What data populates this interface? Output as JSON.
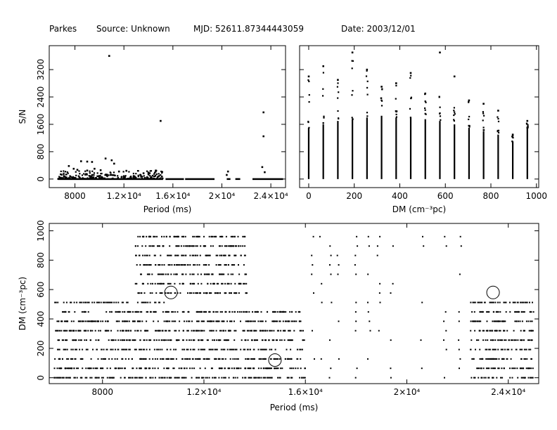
{
  "header": {
    "telescope": "Parkes",
    "source": "Source: Unknown",
    "mjd": "MJD: 52611.87344443059",
    "date": "Date: 2003/12/01"
  },
  "chart_data": [
    {
      "id": "snr_vs_period",
      "type": "scatter",
      "xlabel": "Period (ms)",
      "ylabel": "S/N",
      "xlim": [
        5900,
        25200
      ],
      "ylim": [
        -250,
        3900
      ],
      "xticks": [
        {
          "v": 8000,
          "label": "8000"
        },
        {
          "v": 12000,
          "label": "1.2×10⁴"
        },
        {
          "v": 16000,
          "label": "1.6×10⁴"
        },
        {
          "v": 20000,
          "label": "2×10⁴"
        },
        {
          "v": 24000,
          "label": "2.4×10⁴"
        }
      ],
      "yticks": [
        {
          "v": 0,
          "label": "0"
        },
        {
          "v": 800,
          "label": "800"
        },
        {
          "v": 1600,
          "label": "1600"
        },
        {
          "v": 2400,
          "label": "2400"
        },
        {
          "v": 3200,
          "label": "3200"
        }
      ],
      "baseline_segments": [
        [
          6600,
          15200
        ],
        [
          15400,
          16900
        ],
        [
          17000,
          19400
        ],
        [
          20400,
          20700
        ],
        [
          21100,
          21500
        ],
        [
          22500,
          25000
        ]
      ],
      "points": [
        [
          10800,
          3600
        ],
        [
          15000,
          1700
        ],
        [
          23400,
          1950
        ],
        [
          23400,
          1250
        ],
        [
          10500,
          600
        ],
        [
          11000,
          550
        ],
        [
          8500,
          520
        ],
        [
          9000,
          510
        ],
        [
          9400,
          500
        ],
        [
          11200,
          450
        ],
        [
          7500,
          380
        ],
        [
          7900,
          300
        ],
        [
          8200,
          270
        ],
        [
          9000,
          250
        ],
        [
          9600,
          300
        ],
        [
          10100,
          260
        ],
        [
          11600,
          220
        ],
        [
          12200,
          240
        ],
        [
          13600,
          170
        ],
        [
          14000,
          190
        ],
        [
          14100,
          170
        ],
        [
          14600,
          250
        ],
        [
          20500,
          220
        ],
        [
          23300,
          350
        ],
        [
          20400,
          120
        ],
        [
          23500,
          200
        ],
        [
          13400,
          80
        ],
        [
          7200,
          60
        ],
        [
          12800,
          90
        ],
        [
          15100,
          70
        ]
      ],
      "low_cluster": {
        "x_range": [
          6600,
          15200
        ],
        "y_range": [
          0,
          250
        ]
      }
    },
    {
      "id": "snr_vs_dm",
      "type": "scatter",
      "xlabel": "DM (cm⁻³pc)",
      "ylabel": "",
      "xlim": [
        -40,
        1010
      ],
      "ylim": [
        -250,
        3900
      ],
      "xticks": [
        {
          "v": 0,
          "label": "0"
        },
        {
          "v": 200,
          "label": "200"
        },
        {
          "v": 400,
          "label": "400"
        },
        {
          "v": 600,
          "label": "600"
        },
        {
          "v": 800,
          "label": "800"
        },
        {
          "v": 1000,
          "label": "1000"
        }
      ],
      "yticks": [
        {
          "v": 0,
          "label": ""
        },
        {
          "v": 800,
          "label": ""
        },
        {
          "v": 1600,
          "label": ""
        },
        {
          "v": 2400,
          "label": ""
        },
        {
          "v": 3200,
          "label": ""
        }
      ],
      "columns": [
        {
          "dm": 0,
          "top": 1500,
          "max": 3000
        },
        {
          "dm": 64,
          "top": 1600,
          "max": 3300
        },
        {
          "dm": 128,
          "top": 1700,
          "max": 2900
        },
        {
          "dm": 192,
          "top": 1750,
          "max": 3700
        },
        {
          "dm": 256,
          "top": 1800,
          "max": 3200
        },
        {
          "dm": 320,
          "top": 1850,
          "max": 2700
        },
        {
          "dm": 384,
          "top": 1800,
          "max": 2800
        },
        {
          "dm": 448,
          "top": 1800,
          "max": 3100
        },
        {
          "dm": 512,
          "top": 1750,
          "max": 2500
        },
        {
          "dm": 576,
          "top": 1700,
          "max": 3700
        },
        {
          "dm": 640,
          "top": 1600,
          "max": 3000
        },
        {
          "dm": 704,
          "top": 1500,
          "max": 2300
        },
        {
          "dm": 768,
          "top": 1400,
          "max": 2200
        },
        {
          "dm": 832,
          "top": 1300,
          "max": 2000
        },
        {
          "dm": 896,
          "top": 1100,
          "max": 1300
        },
        {
          "dm": 960,
          "top": 1500,
          "max": 1700
        }
      ]
    },
    {
      "id": "dm_vs_period",
      "type": "scatter",
      "xlabel": "Period (ms)",
      "ylabel": "DM (cm⁻³pc)",
      "xlim": [
        5900,
        25200
      ],
      "ylim": [
        -40,
        1050
      ],
      "xticks": [
        {
          "v": 8000,
          "label": "8000"
        },
        {
          "v": 12000,
          "label": "1.2×10⁴"
        },
        {
          "v": 16000,
          "label": "1.6×10⁴"
        },
        {
          "v": 20000,
          "label": "2×10⁴"
        },
        {
          "v": 24000,
          "label": "2.4×10⁴"
        }
      ],
      "yticks": [
        {
          "v": 0,
          "label": "0"
        },
        {
          "v": 200,
          "label": "200"
        },
        {
          "v": 400,
          "label": "400"
        },
        {
          "v": 600,
          "label": "600"
        },
        {
          "v": 800,
          "label": "800"
        },
        {
          "v": 1000,
          "label": "1000"
        }
      ],
      "dm_rows": [
        0,
        64,
        128,
        192,
        256,
        320,
        384,
        448,
        512,
        576,
        640,
        704,
        768,
        832,
        896,
        960
      ],
      "segments": [
        {
          "rows": [
            0,
            64,
            128,
            192,
            256,
            320,
            384,
            448
          ],
          "x": [
            6100,
            16000
          ]
        },
        {
          "rows": [
            512
          ],
          "x": [
            6100,
            10500
          ]
        },
        {
          "rows": [
            576,
            640,
            704,
            768,
            832,
            896,
            960
          ],
          "x": [
            9300,
            13700
          ]
        },
        {
          "rows": [
            0,
            64,
            128,
            192,
            256,
            320,
            384,
            448,
            512
          ],
          "x": [
            22500,
            25000
          ]
        }
      ],
      "scattered_columns": [
        16300,
        16600,
        17000,
        17300,
        18000,
        18500,
        18900,
        19400,
        20600,
        21500,
        22100
      ],
      "rings": [
        [
          10700,
          580
        ],
        [
          14800,
          120
        ],
        [
          23400,
          580
        ]
      ]
    }
  ]
}
